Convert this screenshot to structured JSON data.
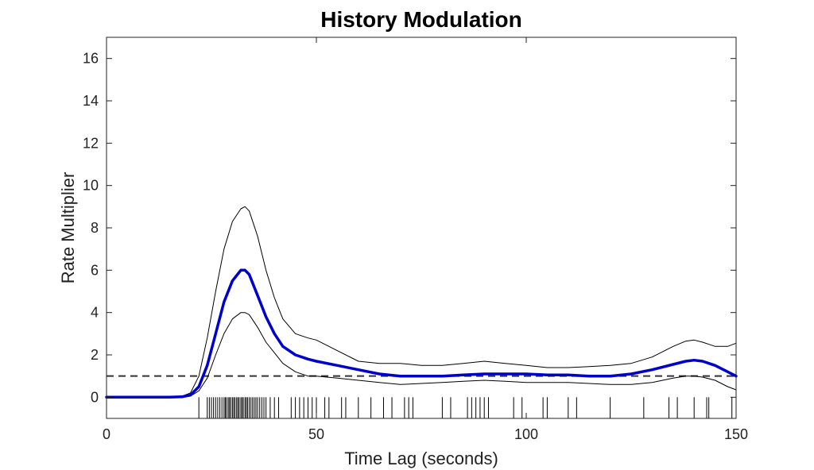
{
  "chart_data": {
    "type": "line",
    "title": "History Modulation",
    "xlabel": "Time Lag (seconds)",
    "ylabel": "Rate Multiplier",
    "xlim": [
      0,
      150
    ],
    "ylim": [
      -1,
      17
    ],
    "xticks": [
      0,
      50,
      100,
      150
    ],
    "yticks": [
      0,
      2,
      4,
      6,
      8,
      10,
      12,
      14,
      16
    ],
    "grid": false,
    "reference_line": {
      "y": 1,
      "style": "dashed",
      "color": "#333333"
    },
    "series": [
      {
        "role": "estimate",
        "color": "#0000CC",
        "x": [
          0,
          5,
          10,
          15,
          18,
          20,
          22,
          24,
          26,
          28,
          30,
          32,
          33,
          34,
          36,
          38,
          40,
          42,
          45,
          48,
          50,
          55,
          60,
          65,
          70,
          75,
          80,
          85,
          90,
          95,
          100,
          105,
          110,
          115,
          120,
          125,
          130,
          135,
          138,
          140,
          142,
          145,
          148,
          150
        ],
        "y": [
          0,
          0,
          0,
          0,
          0.02,
          0.1,
          0.5,
          1.5,
          3.0,
          4.5,
          5.5,
          6.0,
          6.0,
          5.8,
          4.8,
          3.8,
          3.0,
          2.4,
          2.0,
          1.8,
          1.7,
          1.5,
          1.3,
          1.1,
          1.0,
          1.0,
          1.0,
          1.05,
          1.1,
          1.1,
          1.1,
          1.05,
          1.05,
          1.0,
          1.0,
          1.1,
          1.3,
          1.55,
          1.7,
          1.75,
          1.7,
          1.5,
          1.2,
          1.0
        ]
      },
      {
        "role": "upper-bound",
        "color": "#000000",
        "x": [
          0,
          5,
          10,
          15,
          18,
          20,
          22,
          24,
          26,
          28,
          30,
          32,
          33,
          34,
          36,
          38,
          40,
          42,
          45,
          48,
          50,
          55,
          60,
          65,
          70,
          75,
          80,
          85,
          90,
          95,
          100,
          105,
          110,
          115,
          120,
          125,
          130,
          135,
          138,
          140,
          142,
          145,
          148,
          150
        ],
        "y": [
          0,
          0,
          0,
          0,
          0.05,
          0.2,
          1.0,
          2.8,
          5.0,
          7.0,
          8.3,
          8.9,
          9.0,
          8.8,
          7.6,
          6.0,
          4.7,
          3.7,
          3.0,
          2.8,
          2.7,
          2.2,
          1.7,
          1.6,
          1.6,
          1.5,
          1.5,
          1.6,
          1.7,
          1.6,
          1.5,
          1.4,
          1.4,
          1.45,
          1.5,
          1.6,
          1.9,
          2.4,
          2.65,
          2.7,
          2.6,
          2.4,
          2.4,
          2.55
        ]
      },
      {
        "role": "lower-bound",
        "color": "#000000",
        "x": [
          0,
          5,
          10,
          15,
          18,
          20,
          22,
          24,
          26,
          28,
          30,
          32,
          33,
          34,
          36,
          38,
          40,
          42,
          45,
          48,
          50,
          55,
          60,
          65,
          70,
          75,
          80,
          85,
          90,
          95,
          100,
          105,
          110,
          115,
          120,
          125,
          130,
          135,
          138,
          140,
          142,
          145,
          148,
          150
        ],
        "y": [
          0,
          0,
          0,
          0,
          0.0,
          0.05,
          0.3,
          0.9,
          2.0,
          3.0,
          3.7,
          4.0,
          4.0,
          3.9,
          3.3,
          2.6,
          2.1,
          1.6,
          1.2,
          1.0,
          1.0,
          0.9,
          0.8,
          0.7,
          0.6,
          0.65,
          0.7,
          0.75,
          0.8,
          0.75,
          0.7,
          0.7,
          0.7,
          0.65,
          0.6,
          0.6,
          0.7,
          0.9,
          1.0,
          1.0,
          0.95,
          0.8,
          0.5,
          0.35
        ]
      }
    ],
    "rug": {
      "y_range": [
        -1,
        0
      ],
      "x": [
        22,
        24,
        24.5,
        25,
        25.5,
        26,
        26.5,
        27,
        27.5,
        28,
        28.3,
        28.6,
        29,
        29.3,
        29.6,
        30,
        30.3,
        30.6,
        31,
        31.3,
        31.6,
        32,
        32.3,
        32.6,
        33,
        33.3,
        33.6,
        34,
        34.4,
        34.8,
        35.2,
        35.6,
        36,
        36.5,
        37,
        37.5,
        38,
        39,
        40,
        41,
        44,
        45,
        46,
        47,
        48,
        49,
        50,
        52,
        53,
        56,
        57,
        60,
        63,
        66,
        68,
        71,
        72,
        73,
        80,
        82,
        86,
        87,
        88,
        89,
        90,
        91,
        97,
        99,
        104,
        105,
        110,
        112,
        120,
        128,
        134,
        136,
        140,
        143,
        143.5,
        149
      ]
    }
  }
}
